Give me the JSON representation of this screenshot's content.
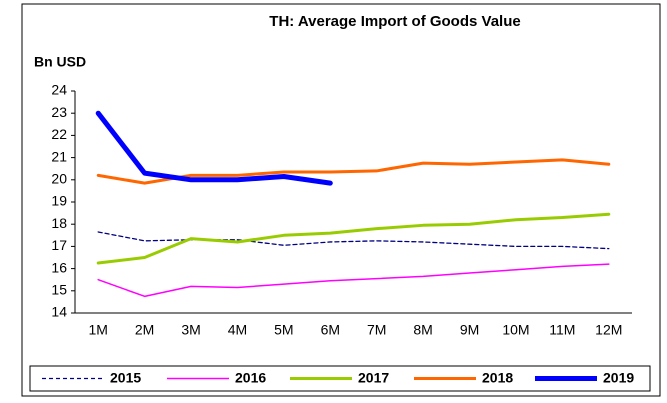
{
  "chart_data": {
    "type": "line",
    "title": "TH: Average Import of Goods Value",
    "y_label": "Bn USD",
    "categories": [
      "1M",
      "2M",
      "3M",
      "4M",
      "5M",
      "6M",
      "7M",
      "8M",
      "9M",
      "10M",
      "11M",
      "12M"
    ],
    "ylim": [
      14,
      24
    ],
    "yticks": [
      14,
      15,
      16,
      17,
      18,
      19,
      20,
      21,
      22,
      23,
      24
    ],
    "grid": false,
    "legend": "bottom",
    "series": [
      {
        "name": "2015",
        "color": "#000080",
        "linestyle": "dashed",
        "linewidth": 1.3,
        "values": [
          17.65,
          17.25,
          17.3,
          17.3,
          17.05,
          17.2,
          17.25,
          17.2,
          17.1,
          17.0,
          17.0,
          16.9
        ]
      },
      {
        "name": "2016",
        "color": "#ff00ff",
        "linestyle": "solid",
        "linewidth": 1.5,
        "values": [
          15.5,
          14.75,
          15.2,
          15.15,
          15.3,
          15.45,
          15.55,
          15.65,
          15.8,
          15.95,
          16.1,
          16.2
        ]
      },
      {
        "name": "2017",
        "color": "#99cc00",
        "linestyle": "solid",
        "linewidth": 3,
        "values": [
          16.25,
          16.5,
          17.35,
          17.2,
          17.5,
          17.6,
          17.8,
          17.95,
          18.0,
          18.2,
          18.3,
          18.45
        ]
      },
      {
        "name": "2018",
        "color": "#ff6600",
        "linestyle": "solid",
        "linewidth": 3,
        "values": [
          20.2,
          19.85,
          20.2,
          20.2,
          20.35,
          20.35,
          20.4,
          20.75,
          20.7,
          20.8,
          20.9,
          20.7
        ]
      },
      {
        "name": "2019",
        "color": "#0000ff",
        "linestyle": "solid",
        "linewidth": 5,
        "values": [
          23.0,
          20.3,
          20.0,
          20.0,
          20.15,
          19.85,
          null,
          null,
          null,
          null,
          null,
          null
        ]
      }
    ]
  }
}
